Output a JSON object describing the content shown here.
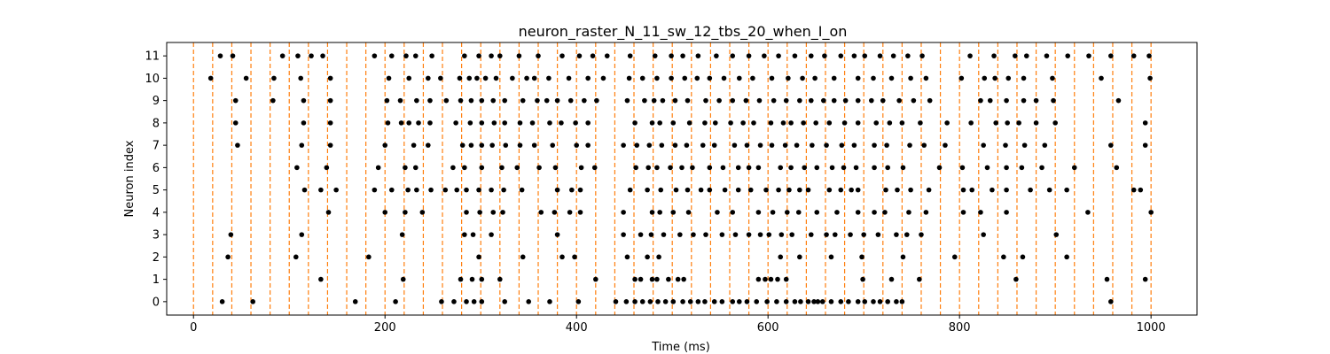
{
  "chart_data": {
    "type": "scatter",
    "title": "neuron_raster_N_11_sw_12_tbs_20_when_I_on",
    "xlabel": "Time (ms)",
    "ylabel": "Neuron index",
    "xlim": [
      -28,
      1048
    ],
    "ylim": [
      -0.6,
      11.6
    ],
    "xticks": [
      0,
      200,
      400,
      600,
      800,
      1000
    ],
    "yticks": [
      0,
      1,
      2,
      3,
      4,
      5,
      6,
      7,
      8,
      9,
      10,
      11
    ],
    "grid": false,
    "legend": "none",
    "marker_color": "#000000",
    "vline_color": "#ff7f0e",
    "vline_style": "dashed",
    "vlines": [
      0,
      20,
      40,
      60,
      80,
      100,
      120,
      140,
      160,
      180,
      200,
      220,
      240,
      260,
      280,
      300,
      320,
      340,
      360,
      380,
      400,
      420,
      440,
      460,
      480,
      500,
      520,
      540,
      560,
      580,
      600,
      620,
      640,
      660,
      680,
      700,
      720,
      740,
      760,
      780,
      800,
      820,
      840,
      860,
      880,
      900,
      920,
      940,
      960,
      980,
      1000
    ],
    "series": [
      {
        "neuron": 0,
        "x": [
          30,
          62,
          169,
          211,
          259,
          272,
          285,
          293,
          301,
          325,
          350,
          372,
          402,
          441,
          452,
          461,
          469,
          477,
          485,
          493,
          501,
          511,
          519,
          527,
          534,
          544,
          552,
          563,
          570,
          578,
          588,
          599,
          609,
          619,
          628,
          634,
          642,
          648,
          652,
          657,
          666,
          676,
          684,
          694,
          701,
          710,
          717,
          725,
          734,
          740,
          958
        ]
      },
      {
        "neuron": 1,
        "x": [
          133,
          219,
          279,
          291,
          301,
          320,
          420,
          461,
          467,
          479,
          484,
          496,
          506,
          512,
          590,
          597,
          603,
          610,
          619,
          699,
          729,
          758,
          859,
          954,
          994
        ]
      },
      {
        "neuron": 2,
        "x": [
          36,
          107,
          183,
          298,
          344,
          385,
          398,
          453,
          474,
          486,
          613,
          633,
          666,
          698,
          741,
          795,
          846,
          866,
          912
        ]
      },
      {
        "neuron": 3,
        "x": [
          39,
          113,
          218,
          283,
          292,
          311,
          380,
          449,
          467,
          478,
          491,
          508,
          522,
          535,
          552,
          566,
          580,
          592,
          601,
          614,
          625,
          645,
          661,
          670,
          686,
          700,
          715,
          734,
          745,
          760,
          825,
          901
        ]
      },
      {
        "neuron": 4,
        "x": [
          141,
          200,
          221,
          239,
          285,
          299,
          313,
          323,
          363,
          377,
          393,
          404,
          449,
          479,
          487,
          501,
          517,
          547,
          563,
          590,
          605,
          620,
          632,
          651,
          672,
          694,
          711,
          722,
          747,
          765,
          804,
          822,
          849,
          934,
          1000
        ]
      },
      {
        "neuron": 5,
        "x": [
          116,
          133,
          149,
          189,
          207,
          224,
          233,
          248,
          263,
          275,
          285,
          298,
          311,
          324,
          343,
          380,
          395,
          404,
          456,
          474,
          488,
          504,
          516,
          530,
          539,
          555,
          569,
          582,
          598,
          611,
          622,
          633,
          642,
          664,
          676,
          687,
          694,
          723,
          735,
          749,
          768,
          804,
          813,
          834,
          849,
          874,
          894,
          912,
          982,
          989
        ]
      },
      {
        "neuron": 6,
        "x": [
          108,
          139,
          193,
          221,
          232,
          271,
          283,
          301,
          322,
          338,
          361,
          378,
          405,
          419,
          462,
          475,
          484,
          498,
          510,
          521,
          539,
          553,
          569,
          580,
          590,
          613,
          624,
          638,
          651,
          667,
          679,
          692,
          711,
          725,
          741,
          779,
          803,
          829,
          849,
          865,
          886,
          920,
          964
        ]
      },
      {
        "neuron": 7,
        "x": [
          46,
          113,
          143,
          200,
          230,
          245,
          281,
          290,
          301,
          312,
          326,
          341,
          356,
          375,
          400,
          412,
          449,
          463,
          476,
          489,
          503,
          515,
          532,
          544,
          565,
          578,
          592,
          604,
          618,
          630,
          646,
          661,
          677,
          690,
          711,
          724,
          748,
          763,
          785,
          825,
          848,
          868,
          889,
          958,
          994
        ]
      },
      {
        "neuron": 8,
        "x": [
          44,
          115,
          143,
          203,
          217,
          225,
          235,
          247,
          274,
          289,
          301,
          314,
          325,
          341,
          354,
          372,
          384,
          399,
          412,
          461,
          479,
          487,
          501,
          518,
          534,
          545,
          561,
          574,
          585,
          603,
          616,
          624,
          637,
          650,
          664,
          680,
          694,
          713,
          727,
          740,
          759,
          787,
          812,
          838,
          850,
          862,
          880,
          900,
          994
        ]
      },
      {
        "neuron": 9,
        "x": [
          44,
          83,
          115,
          143,
          202,
          216,
          233,
          247,
          264,
          279,
          290,
          301,
          313,
          325,
          344,
          359,
          369,
          380,
          394,
          408,
          421,
          453,
          471,
          481,
          490,
          503,
          516,
          535,
          549,
          563,
          577,
          591,
          606,
          619,
          633,
          645,
          658,
          669,
          681,
          694,
          708,
          720,
          737,
          752,
          769,
          822,
          832,
          849,
          867,
          880,
          898,
          966
        ]
      },
      {
        "neuron": 10,
        "x": [
          18,
          55,
          84,
          112,
          143,
          204,
          225,
          245,
          258,
          278,
          288,
          296,
          305,
          316,
          333,
          348,
          356,
          371,
          392,
          412,
          428,
          455,
          469,
          484,
          499,
          513,
          526,
          539,
          554,
          570,
          584,
          604,
          621,
          636,
          649,
          669,
          694,
          710,
          729,
          749,
          765,
          802,
          826,
          837,
          851,
          867,
          897,
          948,
          999
        ]
      },
      {
        "neuron": 11,
        "x": [
          28,
          41,
          93,
          109,
          123,
          135,
          189,
          207,
          222,
          232,
          249,
          283,
          298,
          311,
          320,
          340,
          360,
          385,
          403,
          417,
          432,
          456,
          482,
          499,
          511,
          527,
          546,
          563,
          580,
          596,
          611,
          628,
          645,
          659,
          676,
          690,
          701,
          717,
          731,
          746,
          761,
          811,
          836,
          858,
          870,
          891,
          913,
          935,
          958,
          982,
          998
        ]
      }
    ]
  }
}
